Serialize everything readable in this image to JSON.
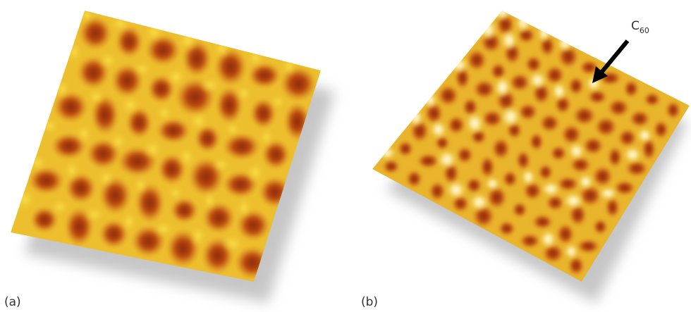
{
  "panels": [
    {
      "label": "(a)"
    },
    {
      "label": "(b)"
    }
  ],
  "annotation": {
    "text": "C",
    "subscript": "60"
  }
}
